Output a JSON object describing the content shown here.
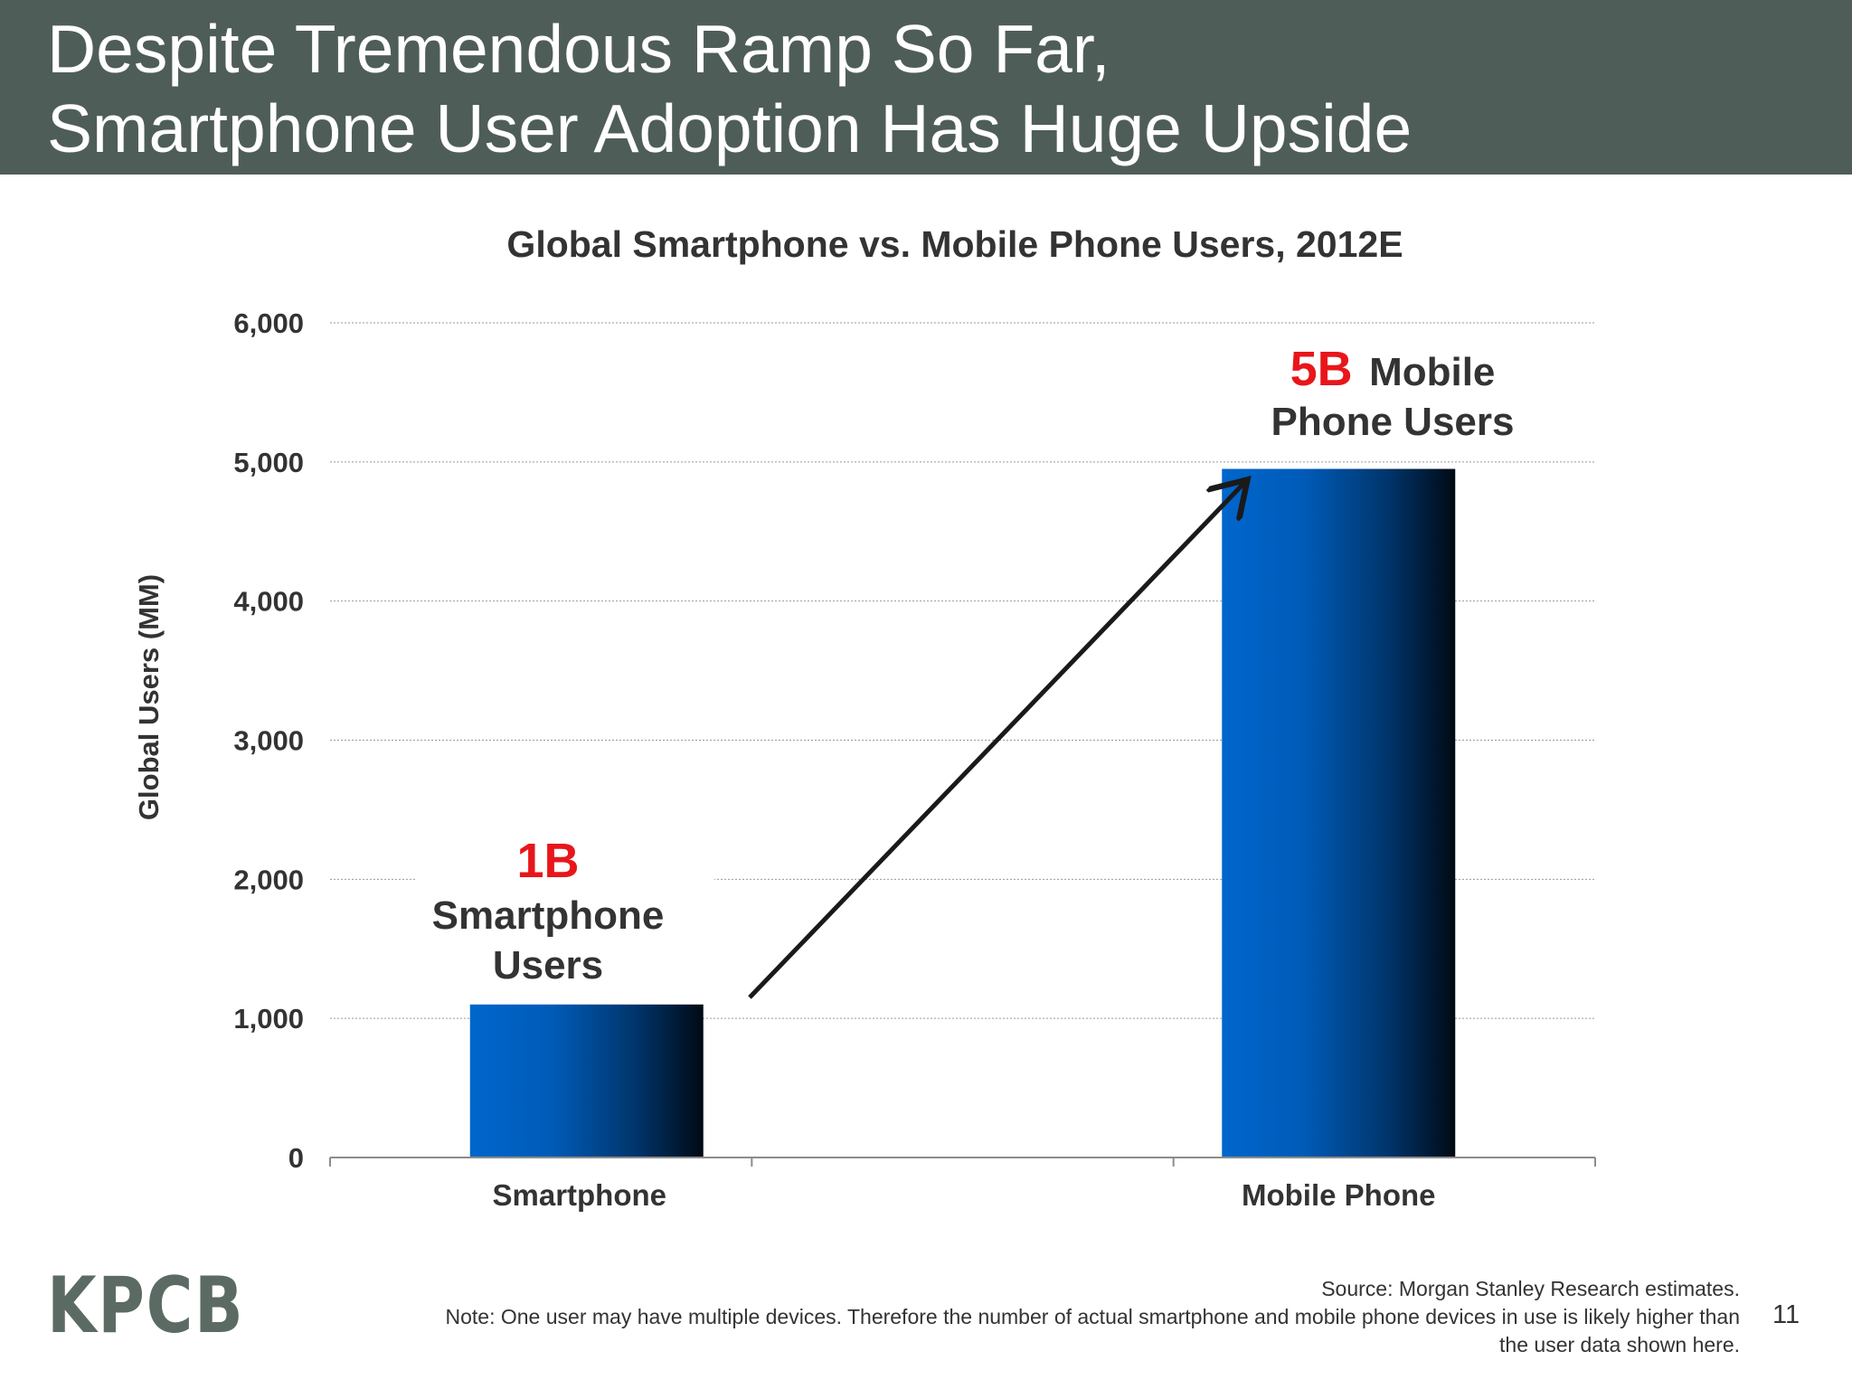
{
  "slide": {
    "title_line1": "Despite Tremendous Ramp So Far,",
    "title_line2": "Smartphone User Adoption Has Huge Upside",
    "logo": "KPCB",
    "source": "Source: Morgan Stanley Research estimates.",
    "note_line1": "Note: One user may have multiple devices. Therefore the number of actual smartphone and mobile phone devices in use is likely higher than",
    "note_line2": "the user data shown here.",
    "page_number": "11",
    "colors": {
      "header_bg": "#4f5d58",
      "bar_blue": "#0066cc",
      "bar_dark": "#000a14",
      "highlight_red": "#e8161b",
      "text": "#333333"
    }
  },
  "chart_data": {
    "type": "bar",
    "title": "Global Smartphone vs. Mobile Phone Users, 2012E",
    "ylabel": "Global Users (MM)",
    "xlabel": "",
    "categories": [
      "Smartphone",
      "Mobile Phone"
    ],
    "values": [
      1100,
      4950
    ],
    "ylim": [
      0,
      6000
    ],
    "yticks": [
      0,
      1000,
      2000,
      3000,
      4000,
      5000,
      6000
    ],
    "ytick_labels": [
      "0",
      "1,000",
      "2,000",
      "3,000",
      "4,000",
      "5,000",
      "6,000"
    ],
    "grid": true,
    "annotations": [
      {
        "big": "1B",
        "lines": [
          "Smartphone",
          "Users"
        ]
      },
      {
        "big": "5B",
        "inline": "Mobile",
        "lines": [
          "Phone Users"
        ]
      }
    ],
    "arrow": {
      "from_category": "Smartphone",
      "to_category": "Mobile Phone"
    }
  }
}
